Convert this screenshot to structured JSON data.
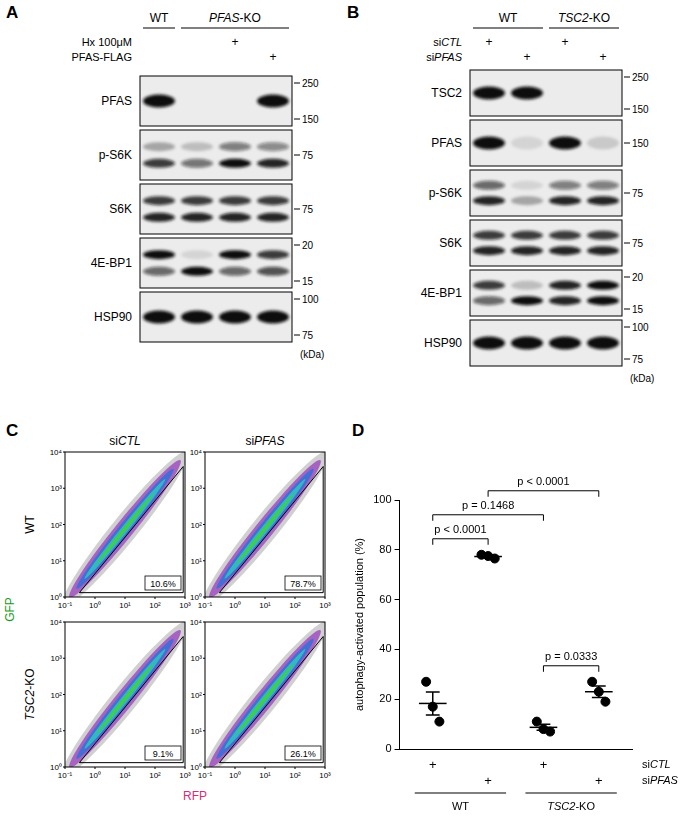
{
  "panels": [
    {
      "label": "A",
      "columns": [
        {
          "text": "WT",
          "lanes": [
            0,
            0
          ]
        },
        {
          "text": "PFAS-KO",
          "lanes": [
            1,
            3
          ]
        }
      ],
      "conditions": [
        {
          "label": "Hx 100μM",
          "marks": [
            null,
            null,
            "+",
            null
          ]
        },
        {
          "label": "PFAS-FLAG",
          "marks": [
            null,
            null,
            null,
            "+"
          ]
        }
      ],
      "blots": [
        {
          "name": "PFAS",
          "bands": [
            [
              1
            ],
            [
              0
            ],
            [
              0
            ],
            [
              1
            ]
          ],
          "markers": [
            250,
            150
          ]
        },
        {
          "name": "p-S6K",
          "bands": [
            [
              0.3,
              0.8
            ],
            [
              0.2,
              0.55
            ],
            [
              0.5,
              1
            ],
            [
              0.45,
              0.9
            ]
          ],
          "markers": [
            75
          ]
        },
        {
          "name": "S6K",
          "bands": [
            [
              0.8,
              0.9
            ],
            [
              0.8,
              0.9
            ],
            [
              0.8,
              0.9
            ],
            [
              0.8,
              0.9
            ]
          ],
          "markers": [
            75
          ]
        },
        {
          "name": "4E-BP1",
          "bands": [
            [
              1,
              0.6
            ],
            [
              0.1,
              1
            ],
            [
              1,
              0.6
            ],
            [
              0.8,
              0.7
            ]
          ],
          "markers": [
            20,
            15
          ]
        },
        {
          "name": "HSP90",
          "bands": [
            [
              1
            ],
            [
              1
            ],
            [
              1
            ],
            [
              1
            ]
          ],
          "markers": [
            100,
            75
          ]
        }
      ],
      "unit": "(kDa)"
    },
    {
      "label": "B",
      "columns": [
        {
          "text": "WT",
          "lanes": [
            0,
            1
          ]
        },
        {
          "text": "TSC2-KO",
          "lanes": [
            2,
            3
          ]
        }
      ],
      "conditions": [
        {
          "label": "siCTL",
          "marks": [
            "+",
            null,
            "+",
            null
          ]
        },
        {
          "label": "siPFAS",
          "marks": [
            null,
            "+",
            null,
            "+"
          ]
        }
      ],
      "blots": [
        {
          "name": "TSC2",
          "bands": [
            [
              1
            ],
            [
              1
            ],
            [
              0
            ],
            [
              0
            ]
          ],
          "markers": [
            250,
            150
          ]
        },
        {
          "name": "PFAS",
          "bands": [
            [
              1
            ],
            [
              0.1
            ],
            [
              1
            ],
            [
              0.15
            ]
          ],
          "markers": [
            150
          ]
        },
        {
          "name": "p-S6K",
          "bands": [
            [
              0.6,
              0.9
            ],
            [
              0.1,
              0.3
            ],
            [
              0.5,
              0.9
            ],
            [
              0.5,
              0.9
            ]
          ],
          "markers": [
            75
          ]
        },
        {
          "name": "S6K",
          "bands": [
            [
              0.8,
              0.9
            ],
            [
              0.8,
              0.9
            ],
            [
              0.8,
              0.9
            ],
            [
              0.8,
              0.9
            ]
          ],
          "markers": [
            75
          ]
        },
        {
          "name": "4E-BP1",
          "bands": [
            [
              0.8,
              0.6
            ],
            [
              0.2,
              1
            ],
            [
              0.9,
              0.9
            ],
            [
              1,
              1
            ]
          ],
          "markers": [
            20,
            15
          ]
        },
        {
          "name": "HSP90",
          "bands": [
            [
              1
            ],
            [
              1
            ],
            [
              1
            ],
            [
              1
            ]
          ],
          "markers": [
            100,
            75
          ]
        }
      ],
      "unit": "(kDa)"
    }
  ],
  "flow": {
    "label": "C",
    "columns": [
      "siCTL",
      "siPFAS"
    ],
    "rows": [
      "WT",
      "TSC2-KO"
    ],
    "x_title": "RFP",
    "y_title": "GFP",
    "log": true,
    "xlim": [
      0.1,
      1000
    ],
    "ylim": [
      1,
      10000
    ],
    "xticks": [
      {
        "value": 0.1,
        "label": "10⁻¹"
      },
      {
        "value": 1,
        "label": "10⁰"
      },
      {
        "value": 10,
        "label": "10¹"
      },
      {
        "value": 100,
        "label": "10²"
      },
      {
        "value": 1000,
        "label": "10³"
      }
    ],
    "yticks": [
      {
        "value": 1,
        "label": "10⁰"
      },
      {
        "value": 10,
        "label": "10¹"
      },
      {
        "value": 100,
        "label": "10²"
      },
      {
        "value": 1000,
        "label": "10³"
      },
      {
        "value": 10000,
        "label": "10⁴"
      }
    ],
    "gates": [
      [
        "10.6%",
        "78.7%"
      ],
      [
        "9.1%",
        "26.1%"
      ]
    ]
  },
  "chart_panel_label": "D",
  "chart_data": {
    "type": "scatter",
    "categories": [
      null,
      null,
      null,
      null
    ],
    "y_label": "autophagy-activated population (%)",
    "points": [
      [
        27,
        17,
        11
      ],
      [
        78,
        77.5,
        76.5
      ],
      [
        11,
        8,
        7
      ],
      [
        27,
        23,
        19
      ]
    ],
    "values": [
      18.3,
      77.3,
      8.7,
      23
    ],
    "error": [
      4.6,
      0.4,
      1.2,
      2.3
    ],
    "color": "#000000",
    "ylim": [
      0,
      100
    ],
    "yticks": [
      0,
      20,
      40,
      60,
      80,
      100
    ],
    "grid": false,
    "tick_labels": "y",
    "comparisons": [
      {
        "from": 2,
        "to": 3,
        "text": "p = 0.0333"
      },
      {
        "from": 0,
        "to": 1,
        "text": "p < 0.0001"
      },
      {
        "from": 0,
        "to": 2,
        "text": "p = 0.1468"
      },
      {
        "from": 1,
        "to": 3,
        "text": "p < 0.0001"
      }
    ],
    "design": {
      "rows": [
        {
          "label": "siCTL",
          "marks": [
            "+",
            null,
            "+",
            null
          ]
        },
        {
          "label": "siPFAS",
          "marks": [
            null,
            "+",
            null,
            "+"
          ]
        }
      ],
      "groups": [
        {
          "label": "WT",
          "from": 0,
          "to": 1
        },
        {
          "label": "TSC2-KO",
          "from": 2,
          "to": 3
        }
      ]
    }
  }
}
